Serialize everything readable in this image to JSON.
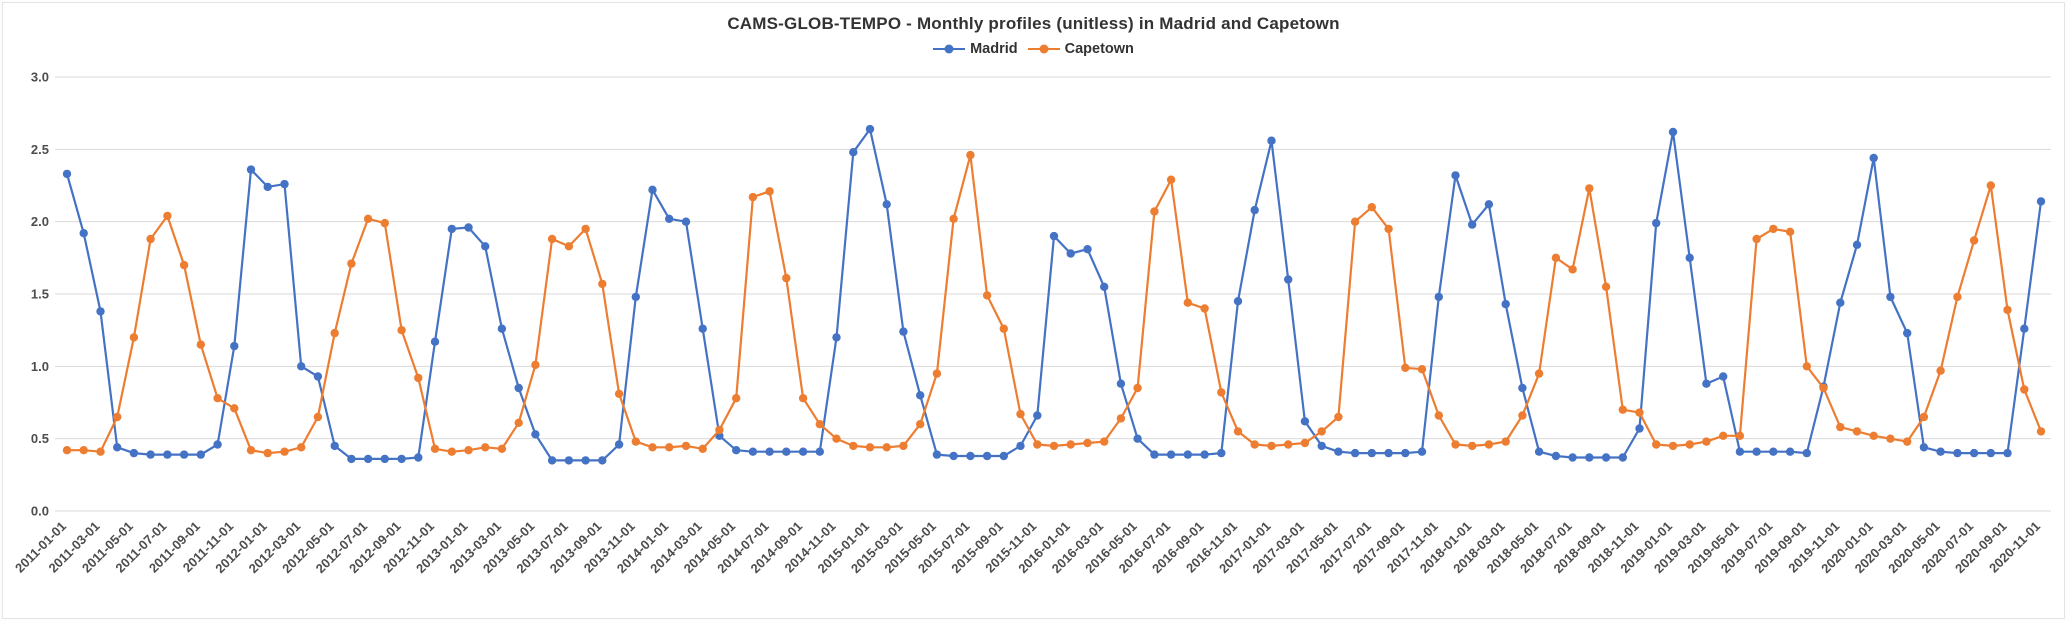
{
  "chart_data": {
    "type": "line",
    "title": "CAMS-GLOB-TEMPO - Monthly profiles (unitless) in Madrid and Capetown",
    "ylim": [
      0,
      3
    ],
    "ytick_step": 0.5,
    "ytick_labels": [
      "0.0",
      "0.5",
      "1.0",
      "1.5",
      "2.0",
      "2.5",
      "3.0"
    ],
    "xtick_every": 2,
    "grid": "horizontal",
    "grid_color": "#D9D9D9",
    "legend_position": "top-center",
    "marker": "circle",
    "x": [
      "2011-01-01",
      "2011-02-01",
      "2011-03-01",
      "2011-04-01",
      "2011-05-01",
      "2011-06-01",
      "2011-07-01",
      "2011-08-01",
      "2011-09-01",
      "2011-10-01",
      "2011-11-01",
      "2011-12-01",
      "2012-01-01",
      "2012-02-01",
      "2012-03-01",
      "2012-04-01",
      "2012-05-01",
      "2012-06-01",
      "2012-07-01",
      "2012-08-01",
      "2012-09-01",
      "2012-10-01",
      "2012-11-01",
      "2012-12-01",
      "2013-01-01",
      "2013-02-01",
      "2013-03-01",
      "2013-04-01",
      "2013-05-01",
      "2013-06-01",
      "2013-07-01",
      "2013-08-01",
      "2013-09-01",
      "2013-10-01",
      "2013-11-01",
      "2013-12-01",
      "2014-01-01",
      "2014-02-01",
      "2014-03-01",
      "2014-04-01",
      "2014-05-01",
      "2014-06-01",
      "2014-07-01",
      "2014-08-01",
      "2014-09-01",
      "2014-10-01",
      "2014-11-01",
      "2014-12-01",
      "2015-01-01",
      "2015-02-01",
      "2015-03-01",
      "2015-04-01",
      "2015-05-01",
      "2015-06-01",
      "2015-07-01",
      "2015-08-01",
      "2015-09-01",
      "2015-10-01",
      "2015-11-01",
      "2015-12-01",
      "2016-01-01",
      "2016-02-01",
      "2016-03-01",
      "2016-04-01",
      "2016-05-01",
      "2016-06-01",
      "2016-07-01",
      "2016-08-01",
      "2016-09-01",
      "2016-10-01",
      "2016-11-01",
      "2016-12-01",
      "2017-01-01",
      "2017-02-01",
      "2017-03-01",
      "2017-04-01",
      "2017-05-01",
      "2017-06-01",
      "2017-07-01",
      "2017-08-01",
      "2017-09-01",
      "2017-10-01",
      "2017-11-01",
      "2017-12-01",
      "2018-01-01",
      "2018-02-01",
      "2018-03-01",
      "2018-04-01",
      "2018-05-01",
      "2018-06-01",
      "2018-07-01",
      "2018-08-01",
      "2018-09-01",
      "2018-10-01",
      "2018-11-01",
      "2018-12-01",
      "2019-01-01",
      "2019-02-01",
      "2019-03-01",
      "2019-04-01",
      "2019-05-01",
      "2019-06-01",
      "2019-07-01",
      "2019-08-01",
      "2019-09-01",
      "2019-10-01",
      "2019-11-01",
      "2019-12-01",
      "2020-01-01",
      "2020-02-01",
      "2020-03-01",
      "2020-04-01",
      "2020-05-01",
      "2020-06-01",
      "2020-07-01",
      "2020-08-01",
      "2020-09-01",
      "2020-10-01",
      "2020-11-01"
    ],
    "series": [
      {
        "name": "Madrid",
        "color": "#4472C4",
        "values": [
          2.33,
          1.92,
          1.38,
          0.44,
          0.4,
          0.39,
          0.39,
          0.39,
          0.39,
          0.46,
          1.14,
          2.36,
          2.24,
          2.26,
          1.0,
          0.93,
          0.45,
          0.36,
          0.36,
          0.36,
          0.36,
          0.37,
          1.17,
          1.95,
          1.96,
          1.83,
          1.26,
          0.85,
          0.53,
          0.35,
          0.35,
          0.35,
          0.35,
          0.46,
          1.48,
          2.22,
          2.02,
          2.0,
          1.26,
          0.52,
          0.42,
          0.41,
          0.41,
          0.41,
          0.41,
          0.41,
          1.2,
          2.48,
          2.64,
          2.12,
          1.24,
          0.8,
          0.39,
          0.38,
          0.38,
          0.38,
          0.38,
          0.45,
          0.66,
          1.9,
          1.78,
          1.81,
          1.55,
          0.88,
          0.5,
          0.39,
          0.39,
          0.39,
          0.39,
          0.4,
          1.45,
          2.08,
          2.56,
          1.6,
          0.62,
          0.45,
          0.41,
          0.4,
          0.4,
          0.4,
          0.4,
          0.41,
          1.48,
          2.32,
          1.98,
          2.12,
          1.43,
          0.85,
          0.41,
          0.38,
          0.37,
          0.37,
          0.37,
          0.37,
          0.57,
          1.99,
          2.62,
          1.75,
          0.88,
          0.93,
          0.41,
          0.41,
          0.41,
          0.41,
          0.4,
          0.86,
          1.44,
          1.84,
          2.44,
          1.48,
          1.23,
          0.44,
          0.41,
          0.4,
          0.4,
          0.4,
          0.4,
          1.26,
          2.14
        ]
      },
      {
        "name": "Capetown",
        "color": "#ED7D31",
        "values": [
          0.42,
          0.42,
          0.41,
          0.65,
          1.2,
          1.88,
          2.04,
          1.7,
          1.15,
          0.78,
          0.71,
          0.42,
          0.4,
          0.41,
          0.44,
          0.65,
          1.23,
          1.71,
          2.02,
          1.99,
          1.25,
          0.92,
          0.43,
          0.41,
          0.42,
          0.44,
          0.43,
          0.61,
          1.01,
          1.88,
          1.83,
          1.95,
          1.57,
          0.81,
          0.48,
          0.44,
          0.44,
          0.45,
          0.43,
          0.56,
          0.78,
          2.17,
          2.21,
          1.61,
          0.78,
          0.6,
          0.5,
          0.45,
          0.44,
          0.44,
          0.45,
          0.6,
          0.95,
          2.02,
          2.46,
          1.49,
          1.26,
          0.67,
          0.46,
          0.45,
          0.46,
          0.47,
          0.48,
          0.64,
          0.85,
          2.07,
          2.29,
          1.44,
          1.4,
          0.82,
          0.55,
          0.46,
          0.45,
          0.46,
          0.47,
          0.55,
          0.65,
          2.0,
          2.1,
          1.95,
          0.99,
          0.98,
          0.66,
          0.46,
          0.45,
          0.46,
          0.48,
          0.66,
          0.95,
          1.75,
          1.67,
          2.23,
          1.55,
          0.7,
          0.68,
          0.46,
          0.45,
          0.46,
          0.48,
          0.52,
          0.52,
          1.88,
          1.95,
          1.93,
          1.0,
          0.85,
          0.58,
          0.55,
          0.52,
          0.5,
          0.48,
          0.65,
          0.97,
          1.48,
          1.87,
          2.25,
          1.39,
          0.84,
          0.55
        ]
      }
    ]
  }
}
